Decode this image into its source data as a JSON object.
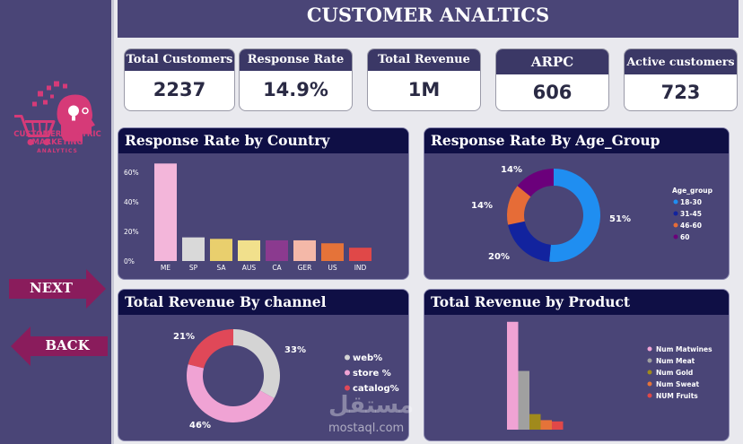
{
  "header": {
    "title": "CUSTOMER ANALTICS"
  },
  "sidebar": {
    "logo_lines": [
      "CUSTOMER-CENTRIC",
      "MARKETING",
      "ANALYTICS"
    ],
    "next_label": "NEXT",
    "back_label": "BACK"
  },
  "kpis": [
    {
      "label": "Total Customers",
      "value": "2237"
    },
    {
      "label": "Response Rate",
      "value": "14.9%"
    },
    {
      "label": "Total Revenue",
      "value": "1M"
    },
    {
      "label": "ARPC",
      "value": "606"
    },
    {
      "label": "Active customers",
      "value": "723"
    }
  ],
  "panels": {
    "country": "Response Rate by Country",
    "age": "Response Rate By Age_Group",
    "channel": "Total Revenue By channel",
    "product": "Total Revenue by Product"
  },
  "watermark": {
    "text": "mostaql.com",
    "arabic": "مستقل"
  },
  "chart_data": [
    {
      "type": "bar",
      "title": "Response Rate by Country",
      "categories": [
        "ME",
        "SP",
        "SA",
        "AUS",
        "CA",
        "GER",
        "US",
        "IND"
      ],
      "values": [
        66,
        16,
        15,
        14,
        14,
        14,
        12,
        9
      ],
      "colors": [
        "#f3b6da",
        "#d9d9d9",
        "#e9cf6d",
        "#f1e08c",
        "#8b3a8f",
        "#f4b8a8",
        "#e57339",
        "#e04848"
      ],
      "yticks": [
        "0%",
        "20%",
        "40%",
        "60%"
      ],
      "ylim": [
        0,
        68
      ]
    },
    {
      "type": "pie",
      "title": "Response Rate By Age_Group",
      "legend_title": "Age_group",
      "labels": [
        "18-30",
        "31-45",
        "46-60",
        "60"
      ],
      "values": [
        51,
        20,
        14,
        14
      ],
      "value_labels": [
        "51%",
        "20%",
        "14%",
        "14%"
      ],
      "colors": [
        "#1f8ef1",
        "#12239e",
        "#e66c37",
        "#6b007b"
      ]
    },
    {
      "type": "pie",
      "title": "Total Revenue By channel",
      "labels": [
        "web%",
        "store %",
        "catalog%"
      ],
      "values": [
        33,
        46,
        21
      ],
      "value_labels": [
        "33%",
        "46%",
        "21%"
      ],
      "colors": [
        "#d4d4d4",
        "#f0a3d4",
        "#e04858"
      ]
    },
    {
      "type": "bar",
      "title": "Total Revenue by Product",
      "categories": [
        "Num Matwines",
        "Num Meat",
        "Num Gold",
        "Num Sweat",
        "NUM Fruits"
      ],
      "values": [
        680,
        370,
        98,
        60,
        52
      ],
      "colors": [
        "#f0a3d4",
        "#a0a0a0",
        "#a08a1c",
        "#e57339",
        "#e04848"
      ],
      "ylim": [
        0,
        690
      ]
    }
  ]
}
